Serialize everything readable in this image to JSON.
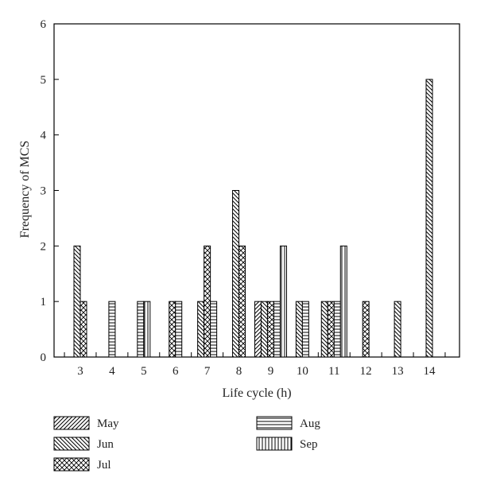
{
  "chart_data": {
    "type": "bar",
    "title": "",
    "xlabel": "Life cycle (h)",
    "ylabel": "Frequency of MCS",
    "ylim": [
      0,
      6
    ],
    "y_ticks": [
      "0",
      "1",
      "2",
      "3",
      "4",
      "5",
      "6"
    ],
    "categories": [
      "3",
      "4",
      "5",
      "6",
      "7",
      "8",
      "9",
      "10",
      "11",
      "12",
      "13",
      "14"
    ],
    "series": [
      {
        "name": "May",
        "values": [
          0,
          0,
          0,
          0,
          0,
          0,
          1,
          0,
          0,
          0,
          0,
          0
        ],
        "pattern": "diag-up"
      },
      {
        "name": "Jun",
        "values": [
          2,
          0,
          0,
          0,
          1,
          3,
          1,
          1,
          1,
          0,
          1,
          5
        ],
        "pattern": "diag-down"
      },
      {
        "name": "Jul",
        "values": [
          1,
          0,
          0,
          1,
          2,
          2,
          1,
          0,
          1,
          1,
          0,
          0
        ],
        "pattern": "cross"
      },
      {
        "name": "Aug",
        "values": [
          0,
          1,
          1,
          1,
          1,
          0,
          1,
          1,
          1,
          0,
          0,
          0
        ],
        "pattern": "horizontal"
      },
      {
        "name": "Sep",
        "values": [
          0,
          0,
          1,
          0,
          0,
          0,
          2,
          0,
          2,
          0,
          0,
          0
        ],
        "pattern": "vertical"
      }
    ],
    "grid": false,
    "legend_position": "bottom"
  }
}
